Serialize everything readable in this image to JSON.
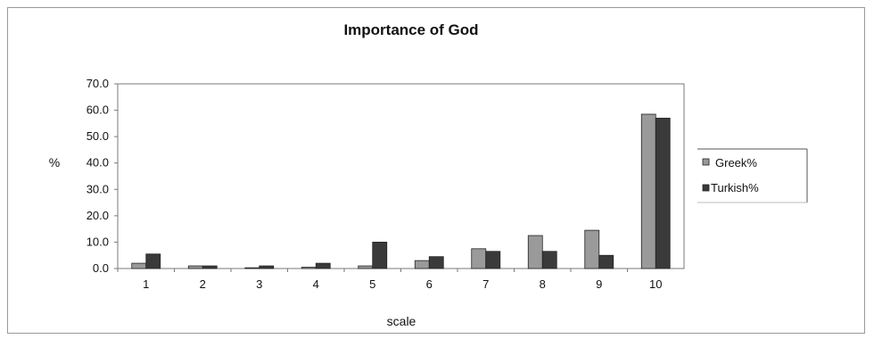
{
  "chart_data": {
    "type": "bar",
    "title": "Importance of God",
    "xlabel": "scale",
    "ylabel": "%",
    "categories": [
      "1",
      "2",
      "3",
      "4",
      "5",
      "6",
      "7",
      "8",
      "9",
      "10"
    ],
    "y_ticks": [
      "0.0",
      "10.0",
      "20.0",
      "30.0",
      "40.0",
      "50.0",
      "60.0",
      "70.0"
    ],
    "ylim": [
      0,
      70
    ],
    "grid": false,
    "legend_position": "right",
    "series": [
      {
        "name": "Greek%",
        "color": "#9a9a9a",
        "values": [
          2.0,
          1.0,
          0.3,
          0.5,
          1.0,
          3.0,
          7.5,
          12.5,
          14.5,
          58.5
        ]
      },
      {
        "name": "Turkish%",
        "color": "#3a3a3a",
        "values": [
          5.5,
          1.0,
          1.0,
          2.0,
          10.0,
          4.5,
          6.5,
          6.5,
          5.0,
          57.0
        ]
      }
    ]
  }
}
